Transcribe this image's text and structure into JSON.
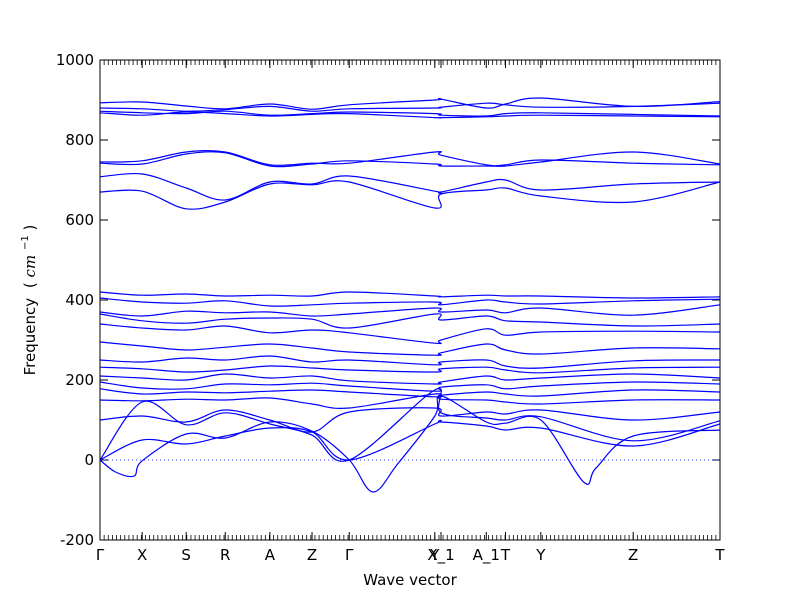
{
  "chart_data": {
    "type": "line",
    "title": "",
    "xlabel": "Wave vector",
    "ylabel": "Frequency (cm^-1)",
    "ylabel_main": "Frequency",
    "ylabel_paren_open": "(",
    "ylabel_unit": "cm",
    "ylabel_sup": "−1",
    "ylabel_paren_close": ")",
    "ylim": [
      -200,
      1000
    ],
    "yticks": [
      -200,
      0,
      200,
      400,
      600,
      800,
      1000
    ],
    "xlim": [
      0,
      1
    ],
    "grid": false,
    "legend": "none",
    "line_color": "#0000ff",
    "zero_line_color": "#0000ff",
    "high_symmetry_points": [
      {
        "label": "Γ",
        "x": 0.0
      },
      {
        "label": "X",
        "x": 0.068
      },
      {
        "label": "S",
        "x": 0.139
      },
      {
        "label": "R",
        "x": 0.202
      },
      {
        "label": "A",
        "x": 0.274
      },
      {
        "label": "Z",
        "x": 0.342
      },
      {
        "label": "Γ",
        "x": 0.402
      },
      {
        "label": "Y",
        "x": 0.54
      },
      {
        "label": "X_1",
        "x": 0.55
      },
      {
        "label": "A_1",
        "x": 0.623
      },
      {
        "label": "T",
        "x": 0.654
      },
      {
        "label": "Y",
        "x": 0.711
      },
      {
        "label": "Z",
        "x": 0.86
      },
      {
        "label": "T",
        "x": 1.0
      }
    ],
    "series": [
      {
        "x": [
          0,
          0.068,
          0.139,
          0.202,
          0.274,
          0.342,
          0.402,
          0.54,
          0.55,
          0.623,
          0.654,
          0.711,
          0.86,
          1.0
        ],
        "y": [
          893,
          895,
          885,
          878,
          890,
          877,
          888,
          900,
          902,
          880,
          890,
          905,
          884,
          896
        ]
      },
      {
        "x": [
          0,
          0.068,
          0.139,
          0.202,
          0.274,
          0.342,
          0.402,
          0.54,
          0.55,
          0.623,
          0.654,
          0.711,
          0.86,
          1.0
        ],
        "y": [
          880,
          878,
          872,
          876,
          884,
          872,
          878,
          880,
          882,
          892,
          888,
          882,
          884,
          892
        ]
      },
      {
        "x": [
          0,
          0.068,
          0.139,
          0.202,
          0.274,
          0.342,
          0.402,
          0.54,
          0.55,
          0.623,
          0.654,
          0.711,
          0.86,
          1.0
        ],
        "y": [
          872,
          868,
          866,
          872,
          862,
          866,
          870,
          866,
          862,
          860,
          866,
          868,
          864,
          860
        ]
      },
      {
        "x": [
          0,
          0.068,
          0.139,
          0.202,
          0.274,
          0.342,
          0.402,
          0.54,
          0.55,
          0.623,
          0.654,
          0.711,
          0.86,
          1.0
        ],
        "y": [
          868,
          862,
          870,
          866,
          860,
          864,
          866,
          856,
          856,
          858,
          860,
          862,
          860,
          858
        ]
      },
      {
        "x": [
          0,
          0.068,
          0.139,
          0.202,
          0.274,
          0.342,
          0.402,
          0.54,
          0.55,
          0.623,
          0.654,
          0.711,
          0.86,
          1.0
        ],
        "y": [
          745,
          748,
          770,
          770,
          738,
          742,
          742,
          770,
          762,
          738,
          738,
          750,
          742,
          738
        ]
      },
      {
        "x": [
          0,
          0.068,
          0.139,
          0.202,
          0.274,
          0.342,
          0.402,
          0.54,
          0.55,
          0.623,
          0.654,
          0.711,
          0.86,
          1.0
        ],
        "y": [
          742,
          740,
          765,
          768,
          735,
          740,
          748,
          740,
          735,
          735,
          735,
          745,
          770,
          740
        ]
      },
      {
        "x": [
          0,
          0.068,
          0.139,
          0.202,
          0.274,
          0.342,
          0.402,
          0.54,
          0.55,
          0.623,
          0.654,
          0.711,
          0.86,
          1.0
        ],
        "y": [
          708,
          715,
          680,
          650,
          695,
          690,
          710,
          672,
          670,
          695,
          700,
          675,
          690,
          695
        ]
      },
      {
        "x": [
          0,
          0.068,
          0.139,
          0.202,
          0.274,
          0.342,
          0.402,
          0.54,
          0.55,
          0.623,
          0.654,
          0.711,
          0.86,
          1.0
        ],
        "y": [
          670,
          672,
          628,
          645,
          690,
          688,
          695,
          630,
          665,
          675,
          680,
          660,
          645,
          695
        ]
      },
      {
        "x": [
          0,
          0.068,
          0.139,
          0.202,
          0.274,
          0.342,
          0.402,
          0.54,
          0.55,
          0.623,
          0.654,
          0.711,
          0.86,
          1.0
        ],
        "y": [
          420,
          412,
          415,
          410,
          412,
          410,
          420,
          410,
          408,
          412,
          410,
          410,
          405,
          408
        ]
      },
      {
        "x": [
          0,
          0.068,
          0.139,
          0.202,
          0.274,
          0.342,
          0.402,
          0.54,
          0.55,
          0.623,
          0.654,
          0.711,
          0.86,
          1.0
        ],
        "y": [
          405,
          395,
          392,
          398,
          385,
          388,
          392,
          395,
          388,
          400,
          395,
          390,
          398,
          402
        ]
      },
      {
        "x": [
          0,
          0.068,
          0.139,
          0.202,
          0.274,
          0.342,
          0.402,
          0.54,
          0.55,
          0.623,
          0.654,
          0.711,
          0.86,
          1.0
        ],
        "y": [
          370,
          360,
          372,
          368,
          370,
          360,
          365,
          380,
          370,
          375,
          368,
          380,
          362,
          388
        ]
      },
      {
        "x": [
          0,
          0.068,
          0.139,
          0.202,
          0.274,
          0.342,
          0.402,
          0.54,
          0.55,
          0.623,
          0.654,
          0.711,
          0.86,
          1.0
        ],
        "y": [
          365,
          348,
          342,
          352,
          355,
          352,
          330,
          365,
          350,
          360,
          348,
          345,
          335,
          340
        ]
      },
      {
        "x": [
          0,
          0.068,
          0.139,
          0.202,
          0.274,
          0.342,
          0.402,
          0.54,
          0.55,
          0.623,
          0.654,
          0.711,
          0.86,
          1.0
        ],
        "y": [
          340,
          330,
          325,
          335,
          318,
          325,
          318,
          292,
          300,
          328,
          312,
          320,
          322,
          320
        ]
      },
      {
        "x": [
          0,
          0.068,
          0.139,
          0.202,
          0.274,
          0.342,
          0.402,
          0.54,
          0.55,
          0.623,
          0.654,
          0.711,
          0.86,
          1.0
        ],
        "y": [
          295,
          285,
          275,
          282,
          290,
          280,
          270,
          262,
          268,
          290,
          275,
          265,
          280,
          278
        ]
      },
      {
        "x": [
          0,
          0.068,
          0.139,
          0.202,
          0.274,
          0.342,
          0.402,
          0.54,
          0.55,
          0.623,
          0.654,
          0.711,
          0.86,
          1.0
        ],
        "y": [
          250,
          245,
          255,
          250,
          260,
          245,
          250,
          238,
          245,
          250,
          235,
          230,
          248,
          250
        ]
      },
      {
        "x": [
          0,
          0.068,
          0.139,
          0.202,
          0.274,
          0.342,
          0.402,
          0.54,
          0.55,
          0.623,
          0.654,
          0.711,
          0.86,
          1.0
        ],
        "y": [
          232,
          228,
          220,
          225,
          235,
          230,
          225,
          220,
          228,
          232,
          225,
          218,
          230,
          232
        ]
      },
      {
        "x": [
          0,
          0.068,
          0.139,
          0.202,
          0.274,
          0.342,
          0.402,
          0.54,
          0.55,
          0.623,
          0.654,
          0.711,
          0.86,
          1.0
        ],
        "y": [
          210,
          205,
          200,
          215,
          205,
          210,
          198,
          190,
          195,
          210,
          200,
          205,
          215,
          205
        ]
      },
      {
        "x": [
          0,
          0.068,
          0.139,
          0.202,
          0.274,
          0.342,
          0.402,
          0.54,
          0.55,
          0.623,
          0.654,
          0.711,
          0.86,
          1.0
        ],
        "y": [
          195,
          180,
          178,
          190,
          188,
          192,
          185,
          172,
          182,
          188,
          178,
          185,
          195,
          190
        ]
      },
      {
        "x": [
          0,
          0.068,
          0.139,
          0.202,
          0.274,
          0.342,
          0.402,
          0.54,
          0.55,
          0.623,
          0.654,
          0.711,
          0.86,
          1.0
        ],
        "y": [
          178,
          165,
          170,
          168,
          172,
          175,
          170,
          158,
          162,
          170,
          165,
          160,
          175,
          170
        ]
      },
      {
        "x": [
          0,
          0.068,
          0.139,
          0.202,
          0.274,
          0.342,
          0.402,
          0.54,
          0.55,
          0.623,
          0.654,
          0.711,
          0.86,
          1.0
        ],
        "y": [
          150,
          148,
          152,
          150,
          155,
          140,
          130,
          165,
          152,
          150,
          145,
          140,
          150,
          150
        ]
      },
      {
        "x": [
          0,
          0.068,
          0.139,
          0.202,
          0.274,
          0.342,
          0.402,
          0.54,
          0.55,
          0.623,
          0.654,
          0.711,
          0.86,
          1.0
        ],
        "y": [
          100,
          110,
          95,
          125,
          100,
          70,
          120,
          130,
          110,
          120,
          115,
          125,
          100,
          120
        ]
      },
      {
        "x": [
          0,
          0.068,
          0.139,
          0.202,
          0.274,
          0.342,
          0.402,
          0.54,
          0.55,
          0.623,
          0.654,
          0.711,
          0.86,
          1.0
        ],
        "y": [
          0,
          145,
          88,
          118,
          90,
          62,
          0,
          175,
          118,
          105,
          100,
          108,
          48,
          98
        ]
      },
      {
        "x": [
          0,
          0.068,
          0.139,
          0.202,
          0.274,
          0.342,
          0.402,
          0.54,
          0.55,
          0.623,
          0.654,
          0.711,
          0.86,
          1.0
        ],
        "y": [
          0,
          50,
          40,
          60,
          80,
          70,
          0,
          90,
          95,
          85,
          75,
          80,
          35,
          90
        ]
      },
      {
        "x": [
          0,
          0.025,
          0.055,
          0.068,
          0.139,
          0.202,
          0.274,
          0.342,
          0.402,
          0.44,
          0.48,
          0.54,
          0.55,
          0.623,
          0.654,
          0.711,
          0.78,
          0.8,
          0.86,
          1.0
        ],
        "y": [
          0,
          -30,
          -40,
          -2,
          65,
          55,
          95,
          72,
          0,
          -80,
          -10,
          110,
          160,
          95,
          92,
          100,
          -55,
          -20,
          60,
          75
        ]
      }
    ]
  }
}
